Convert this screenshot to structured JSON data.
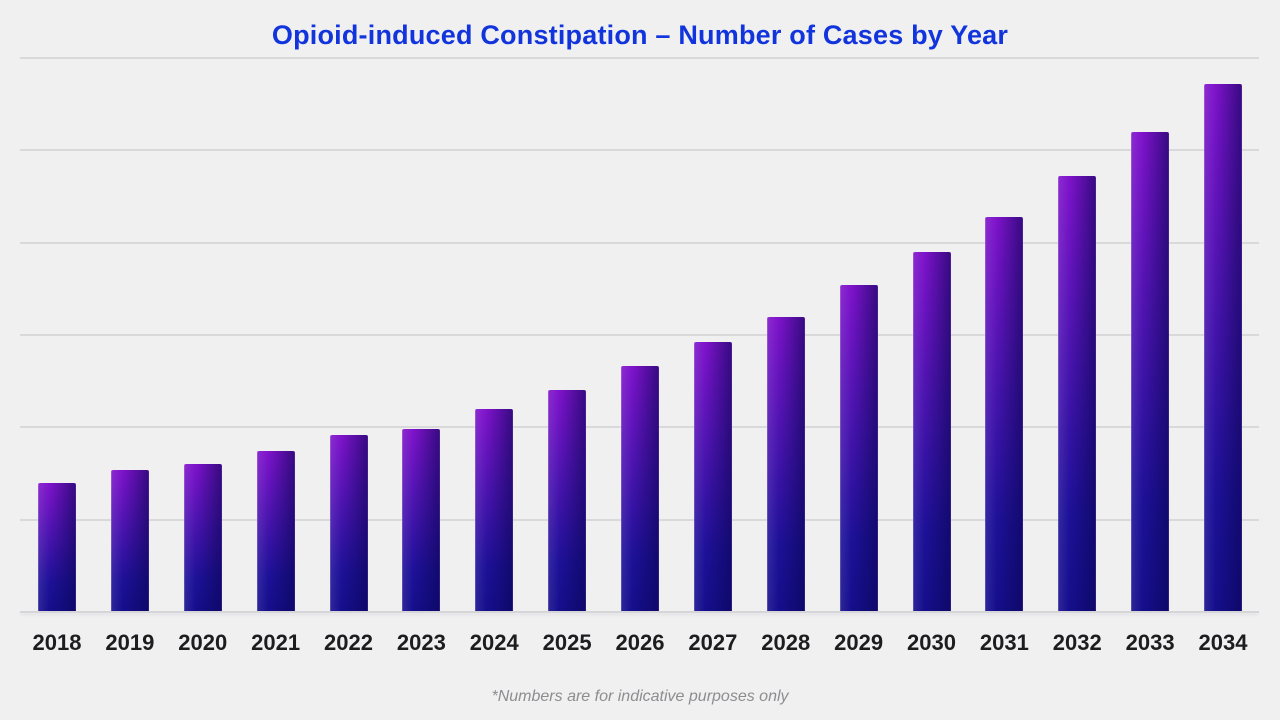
{
  "colors": {
    "background": "#f0f0f1",
    "gridline": "#d9d9db",
    "title": "#1134dd",
    "bar_purple": "#7f13cb",
    "bar_blue": "#1d1198",
    "bar_dark": "#0a0553",
    "label": "#1d1d1f",
    "footnote": "#8d8d90"
  },
  "chart_data": {
    "type": "bar",
    "title": "Opioid-induced Constipation – Number of Cases by Year",
    "note": "*Numbers are for indicative purposes only",
    "categories": [
      "2018",
      "2019",
      "2020",
      "2021",
      "2022",
      "2023",
      "2024",
      "2025",
      "2026",
      "2027",
      "2028",
      "2029",
      "2030",
      "2031",
      "2032",
      "2033",
      "2034"
    ],
    "values": [
      700,
      770,
      800,
      870,
      960,
      990,
      1100,
      1200,
      1330,
      1460,
      1600,
      1770,
      1950,
      2140,
      2360,
      2600,
      2860
    ],
    "xlabel": "",
    "ylabel": "",
    "ylim": [
      0,
      3000
    ],
    "gridline_interval": 500,
    "grid": "horizontal",
    "y_axis_labels_visible": false,
    "legend": "none",
    "bar_style": "gradient purple-to-dark-blue, shaded darker on right side"
  }
}
